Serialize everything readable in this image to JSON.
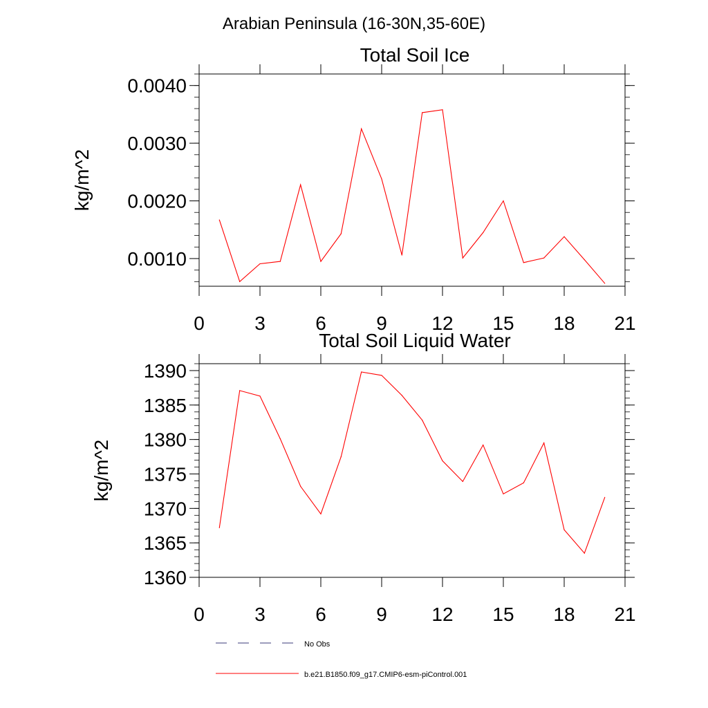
{
  "page": {
    "suptitle": "Arabian Peninsula (16-30N,35-60E)"
  },
  "legend": {
    "entries": [
      {
        "label": "No Obs",
        "color": "#3a3a7a",
        "style": "dashed"
      },
      {
        "label": "b.e21.B1850.f09_g17.CMIP6-esm-piControl.001",
        "color": "#ff0000",
        "style": "solid"
      }
    ]
  },
  "chart_data": [
    {
      "type": "line",
      "title": "Total Soil Ice",
      "xlabel": "",
      "ylabel": "kg/m^2",
      "xlim": [
        0,
        21
      ],
      "ylim": [
        0.00052,
        0.0042
      ],
      "xticks": [
        0,
        3,
        6,
        9,
        12,
        15,
        18,
        21
      ],
      "xtick_labels": [
        "0",
        "3",
        "6",
        "9",
        "12",
        "15",
        "18",
        "21"
      ],
      "yticks": [
        0.001,
        0.002,
        0.003,
        0.004
      ],
      "ytick_labels": [
        "0.0010",
        "0.0020",
        "0.0030",
        "0.0040"
      ],
      "yminor_step": 0.0002,
      "series": [
        {
          "name": "b.e21.B1850.f09_g17.CMIP6-esm-piControl.001",
          "color": "#ff0000",
          "x": [
            1,
            2,
            3,
            4,
            5,
            6,
            7,
            8,
            9,
            10,
            11,
            12,
            13,
            14,
            15,
            16,
            17,
            18,
            19,
            20
          ],
          "values": [
            0.00167,
            0.0006,
            0.00091,
            0.00095,
            0.00228,
            0.00095,
            0.00143,
            0.00325,
            0.00238,
            0.00106,
            0.00353,
            0.00358,
            0.00101,
            0.00145,
            0.002,
            0.00093,
            0.00101,
            0.00138,
            0.00098,
            0.00057
          ]
        }
      ]
    },
    {
      "type": "line",
      "title": "Total Soil Liquid Water",
      "xlabel": "",
      "ylabel": "kg/m^2",
      "xlim": [
        0,
        21
      ],
      "ylim": [
        1360,
        1391
      ],
      "xticks": [
        0,
        3,
        6,
        9,
        12,
        15,
        18,
        21
      ],
      "xtick_labels": [
        "0",
        "3",
        "6",
        "9",
        "12",
        "15",
        "18",
        "21"
      ],
      "yticks": [
        1360,
        1365,
        1370,
        1375,
        1380,
        1385,
        1390
      ],
      "ytick_labels": [
        "1360",
        "1365",
        "1370",
        "1375",
        "1380",
        "1385",
        "1390"
      ],
      "yminor_step": 1,
      "series": [
        {
          "name": "b.e21.B1850.f09_g17.CMIP6-esm-piControl.001",
          "color": "#ff0000",
          "x": [
            1,
            2,
            3,
            4,
            5,
            6,
            7,
            8,
            9,
            10,
            11,
            12,
            13,
            14,
            15,
            16,
            17,
            18,
            19,
            20
          ],
          "values": [
            1367.2,
            1387.1,
            1386.3,
            1380.1,
            1373.2,
            1369.2,
            1377.5,
            1389.8,
            1389.3,
            1386.4,
            1382.8,
            1376.9,
            1373.9,
            1379.2,
            1372.1,
            1373.7,
            1379.5,
            1366.9,
            1363.5,
            1371.6
          ]
        }
      ]
    }
  ]
}
